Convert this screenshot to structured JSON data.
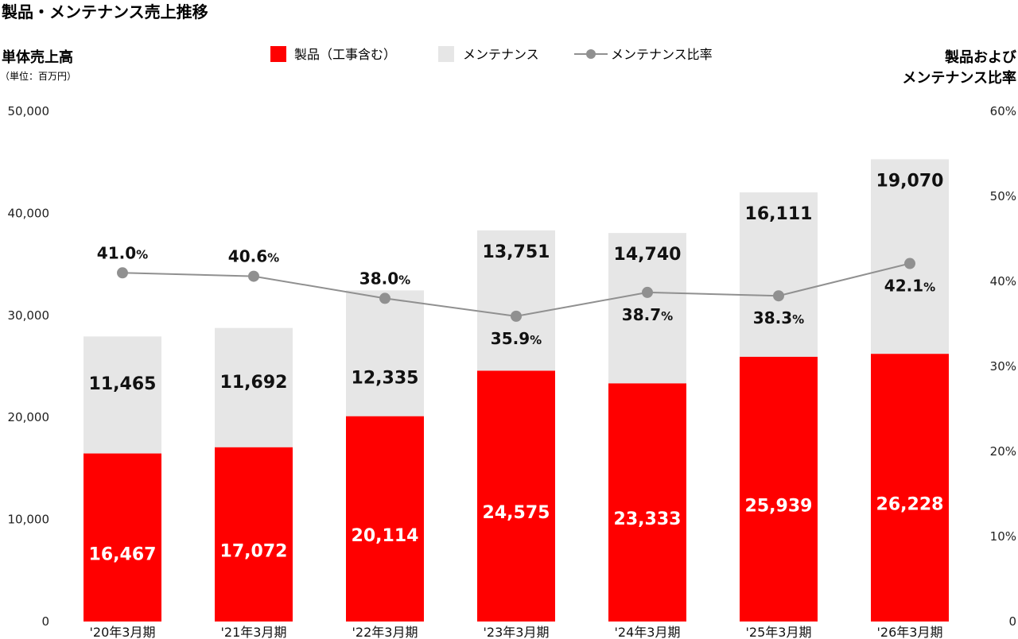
{
  "chart_data": {
    "type": "bar",
    "title": "製品・メンテナンス売上推移",
    "ylabel": "単体売上高",
    "yunit": "（単位：百万円）",
    "y2label_lines": [
      "製品および",
      "メンテナンス比率"
    ],
    "ylim": [
      0,
      50000
    ],
    "y2lim": [
      0,
      0.6
    ],
    "yticks": [
      "0",
      "10,000",
      "20,000",
      "30,000",
      "40,000",
      "50,000"
    ],
    "y2ticks": [
      "0",
      "10%",
      "20%",
      "30%",
      "40%",
      "50%",
      "60%"
    ],
    "categories": [
      "'20年3月期",
      "'21年3月期",
      "'22年3月期",
      "'23年3月期",
      "'24年3月期",
      "'25年3月期",
      "'26年3月期"
    ],
    "legend": [
      "製品（工事含む）",
      "メンテナンス",
      "メンテナンス比率"
    ],
    "series": [
      {
        "name": "製品（工事含む）",
        "kind": "bar",
        "color": "#ff0000",
        "values": [
          16467,
          17072,
          20114,
          24575,
          23333,
          25939,
          26228
        ],
        "labels": [
          "16,467",
          "17,072",
          "20,114",
          "24,575",
          "23,333",
          "25,939",
          "26,228"
        ]
      },
      {
        "name": "メンテナンス",
        "kind": "bar",
        "color": "#e6e6e6",
        "values": [
          11465,
          11692,
          12335,
          13751,
          14740,
          16111,
          19070
        ],
        "labels": [
          "11,465",
          "11,692",
          "12,335",
          "13,751",
          "14,740",
          "16,111",
          "19,070"
        ]
      },
      {
        "name": "メンテナンス比率",
        "kind": "line",
        "axis": "right",
        "color": "#909090",
        "values": [
          41.0,
          40.6,
          38.0,
          35.9,
          38.7,
          38.3,
          42.1
        ],
        "labels": [
          "41.0",
          "40.6",
          "38.0",
          "35.9",
          "38.7",
          "38.3",
          "42.1"
        ],
        "suffix": "%"
      }
    ],
    "legend_position": "top-center",
    "grid": false
  }
}
